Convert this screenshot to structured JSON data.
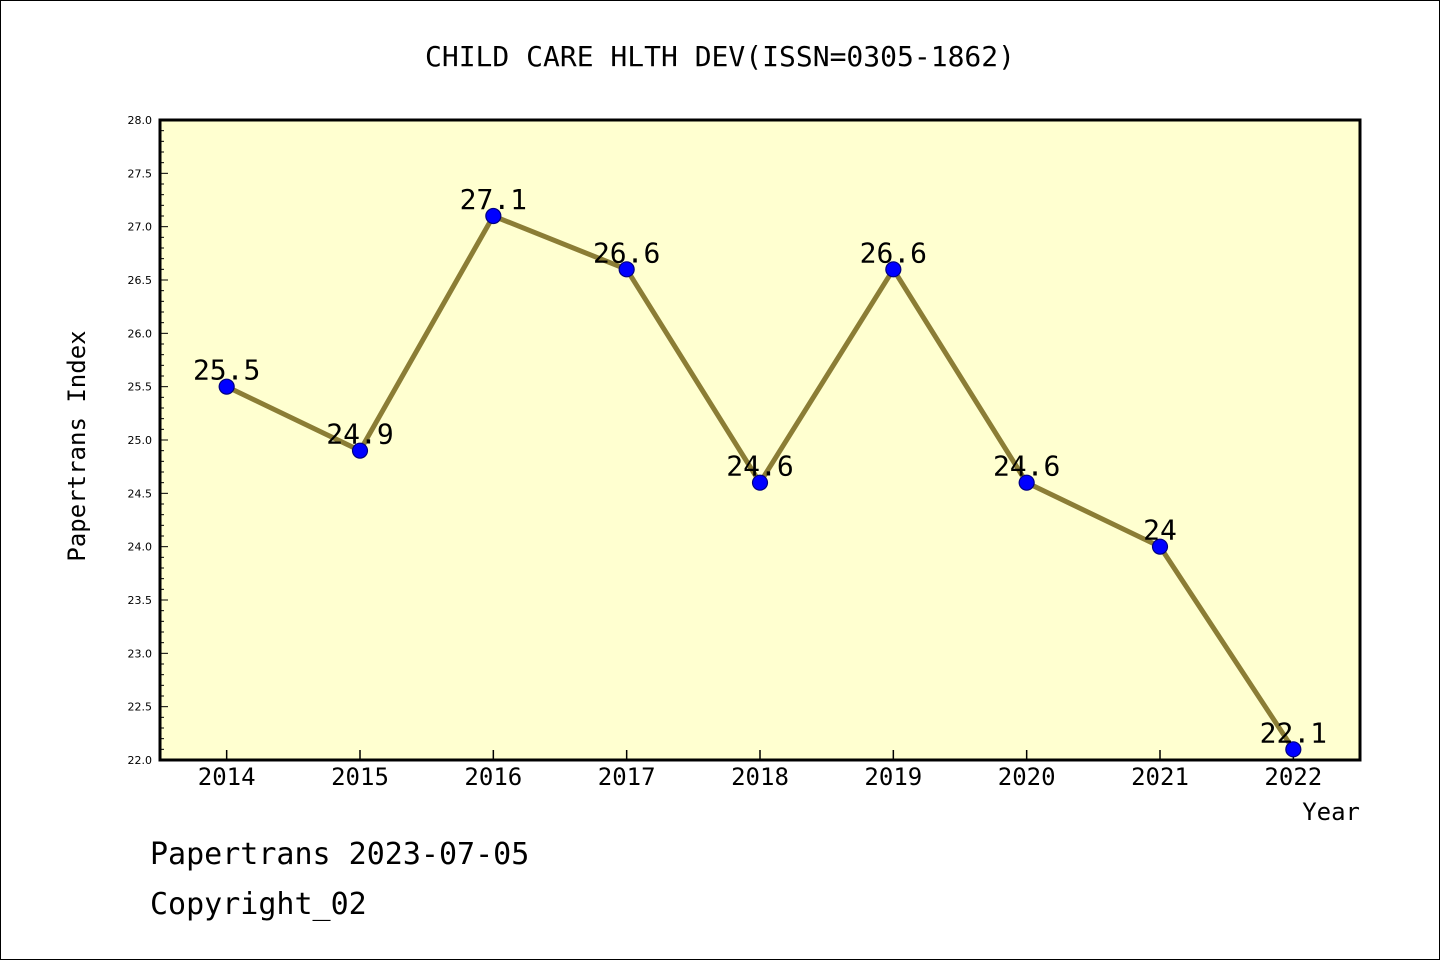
{
  "chart_data": {
    "type": "line",
    "title": "CHILD CARE HLTH DEV(ISSN=0305-1862)",
    "xlabel": "Year",
    "ylabel": "Papertrans Index",
    "categories": [
      "2014",
      "2015",
      "2016",
      "2017",
      "2018",
      "2019",
      "2020",
      "2021",
      "2022"
    ],
    "values": [
      25.5,
      24.9,
      27.1,
      26.6,
      24.6,
      26.6,
      24.6,
      24.0,
      22.1
    ],
    "data_labels": [
      "25.5",
      "24.9",
      "27.1",
      "26.6",
      "24.6",
      "26.6",
      "24.6",
      "24",
      "22.1"
    ],
    "ylim": [
      22.0,
      28.0
    ],
    "yticks": [
      "22.0",
      "22.5",
      "23.0",
      "23.5",
      "24.0",
      "24.5",
      "25.0",
      "25.5",
      "26.0",
      "26.5",
      "27.0",
      "27.5",
      "28.0"
    ],
    "grid": false,
    "colors": {
      "plot_background": "#ffffd0",
      "line": "#8b7d35",
      "marker": "#0000ff",
      "marker_edge": "#000080"
    }
  },
  "footer": {
    "line1": "Papertrans 2023-07-05",
    "line2": "Copyright_02"
  }
}
